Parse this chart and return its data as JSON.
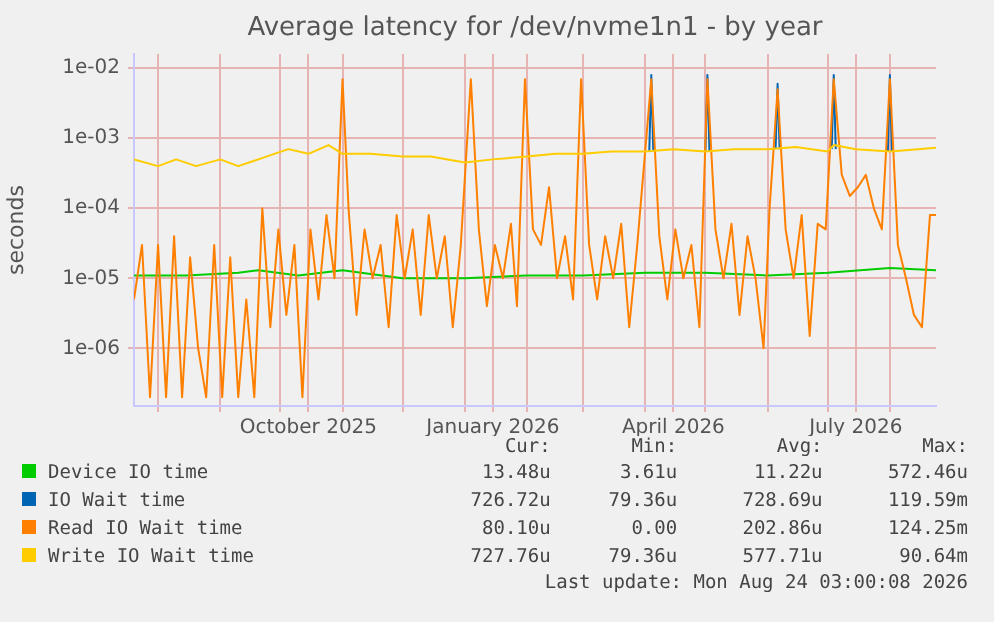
{
  "chart_data": {
    "type": "line",
    "title": "Average latency for /dev/nvme1n1 - by year",
    "ylabel": "seconds",
    "log": "y",
    "grid": true,
    "legend": "bottom",
    "marker": "none",
    "line_style": "solid",
    "xlim": [
      "2025-07-20",
      "2026-08-24"
    ],
    "xticks": [
      {
        "value": "2025-08-01",
        "label": null
      },
      {
        "value": "2025-09-01",
        "label": null
      },
      {
        "value": "2025-10-01",
        "label": null
      },
      {
        "value": "2025-10-15",
        "label": "October 2025"
      },
      {
        "value": "2025-11-01",
        "label": null
      },
      {
        "value": "2025-12-01",
        "label": null
      },
      {
        "value": "2026-01-01",
        "label": null
      },
      {
        "value": "2026-01-15",
        "label": "January 2026"
      },
      {
        "value": "2026-02-01",
        "label": null
      },
      {
        "value": "2026-03-01",
        "label": null
      },
      {
        "value": "2026-04-01",
        "label": null
      },
      {
        "value": "2026-04-15",
        "label": "April 2026"
      },
      {
        "value": "2026-05-01",
        "label": null
      },
      {
        "value": "2026-06-01",
        "label": null
      },
      {
        "value": "2026-07-01",
        "label": null
      },
      {
        "value": "2026-07-15",
        "label": "July 2026"
      },
      {
        "value": "2026-08-01",
        "label": null
      }
    ],
    "ylim": [
      1.5e-07,
      0.016
    ],
    "yticks": [
      {
        "value": 1e-06,
        "label": "1e-06"
      },
      {
        "value": 1e-05,
        "label": "1e-05"
      },
      {
        "value": 0.0001,
        "label": "1e-04"
      },
      {
        "value": 0.001,
        "label": "1e-03"
      },
      {
        "value": 0.01,
        "label": "1e-02"
      }
    ],
    "series": [
      {
        "name": "Device IO time",
        "color": "#00cc00",
        "x": [
          "2025-07-20",
          "2025-08-15",
          "2025-09-10",
          "2025-09-20",
          "2025-10-10",
          "2025-11-01",
          "2025-12-01",
          "2026-01-01",
          "2026-02-01",
          "2026-03-01",
          "2026-04-01",
          "2026-05-01",
          "2026-06-01",
          "2026-07-01",
          "2026-08-01",
          "2026-08-24"
        ],
        "values": [
          1.1e-05,
          1.1e-05,
          1.2e-05,
          1.3e-05,
          1.1e-05,
          1.3e-05,
          1e-05,
          1e-05,
          1.1e-05,
          1.1e-05,
          1.2e-05,
          1.2e-05,
          1.1e-05,
          1.2e-05,
          1.4e-05,
          1.3e-05
        ]
      },
      {
        "name": "IO Wait time",
        "color": "#0066b3",
        "x": [
          "2026-04-03",
          "2026-04-04",
          "2026-04-05",
          "2026-04-20",
          "2026-05-01",
          "2026-05-02",
          "2026-05-03",
          "2026-05-20",
          "2026-06-05",
          "2026-06-06",
          "2026-06-07",
          "2026-06-20",
          "2026-07-03",
          "2026-07-04",
          "2026-07-05",
          "2026-07-20",
          "2026-07-31",
          "2026-08-01",
          "2026-08-02"
        ],
        "values": [
          0.00065,
          0.008,
          0.00065,
          null,
          0.00065,
          0.008,
          0.00065,
          null,
          0.0007,
          0.006,
          0.0007,
          null,
          0.0007,
          0.008,
          0.0007,
          null,
          0.00065,
          0.008,
          0.00065
        ]
      },
      {
        "name": "Read IO Wait time",
        "color": "#ff8000",
        "x": [
          "2025-07-20",
          "2025-07-24",
          "2025-07-28",
          "2025-08-01",
          "2025-08-05",
          "2025-08-09",
          "2025-08-13",
          "2025-08-17",
          "2025-08-21",
          "2025-08-25",
          "2025-08-29",
          "2025-09-02",
          "2025-09-06",
          "2025-09-10",
          "2025-09-14",
          "2025-09-18",
          "2025-09-22",
          "2025-09-26",
          "2025-09-30",
          "2025-10-04",
          "2025-10-08",
          "2025-10-12",
          "2025-10-16",
          "2025-10-20",
          "2025-10-24",
          "2025-10-28",
          "2025-11-01",
          "2025-11-04",
          "2025-11-08",
          "2025-11-12",
          "2025-11-16",
          "2025-11-20",
          "2025-11-24",
          "2025-11-28",
          "2025-12-02",
          "2025-12-06",
          "2025-12-10",
          "2025-12-14",
          "2025-12-18",
          "2025-12-22",
          "2025-12-26",
          "2025-12-30",
          "2026-01-04",
          "2026-01-08",
          "2026-01-12",
          "2026-01-16",
          "2026-01-20",
          "2026-01-24",
          "2026-01-27",
          "2026-01-31",
          "2026-02-04",
          "2026-02-08",
          "2026-02-12",
          "2026-02-16",
          "2026-02-20",
          "2026-02-24",
          "2026-02-28",
          "2026-03-04",
          "2026-03-08",
          "2026-03-12",
          "2026-03-16",
          "2026-03-20",
          "2026-03-24",
          "2026-03-28",
          "2026-04-04",
          "2026-04-08",
          "2026-04-12",
          "2026-04-16",
          "2026-04-20",
          "2026-04-24",
          "2026-04-28",
          "2026-05-02",
          "2026-05-06",
          "2026-05-10",
          "2026-05-14",
          "2026-05-18",
          "2026-05-22",
          "2026-05-26",
          "2026-05-30",
          "2026-06-02",
          "2026-06-06",
          "2026-06-10",
          "2026-06-14",
          "2026-06-18",
          "2026-06-22",
          "2026-06-26",
          "2026-06-30",
          "2026-07-04",
          "2026-07-08",
          "2026-07-12",
          "2026-07-16",
          "2026-07-20",
          "2026-07-24",
          "2026-07-28",
          "2026-08-01",
          "2026-08-05",
          "2026-08-09",
          "2026-08-13",
          "2026-08-17",
          "2026-08-21",
          "2026-08-24"
        ],
        "values": [
          5e-06,
          3e-05,
          2e-07,
          3e-05,
          2e-07,
          4e-05,
          2e-07,
          2e-05,
          1e-06,
          2e-07,
          3e-05,
          2e-07,
          2e-05,
          2e-07,
          5e-06,
          2e-07,
          0.0001,
          2e-06,
          5e-05,
          3e-06,
          3e-05,
          2e-07,
          5e-05,
          5e-06,
          8e-05,
          1e-05,
          0.007,
          0.0001,
          3e-06,
          5e-05,
          1e-05,
          3e-05,
          2e-06,
          8e-05,
          1e-05,
          5e-05,
          3e-06,
          8e-05,
          1e-05,
          4e-05,
          2e-06,
          3e-05,
          0.007,
          5e-05,
          4e-06,
          3e-05,
          1e-05,
          6e-05,
          4e-06,
          0.007,
          5e-05,
          3e-05,
          0.0002,
          1e-05,
          4e-05,
          5e-06,
          0.007,
          3e-05,
          5e-06,
          4e-05,
          1e-05,
          6e-05,
          2e-06,
          3e-05,
          0.007,
          4e-05,
          5e-06,
          5e-05,
          1e-05,
          3e-05,
          2e-06,
          0.007,
          5e-05,
          1e-05,
          6e-05,
          3e-06,
          4e-05,
          1e-05,
          1e-06,
          0.0001,
          0.005,
          5e-05,
          1e-05,
          8e-05,
          1.5e-06,
          6e-05,
          5e-05,
          0.007,
          0.0003,
          0.00015,
          0.0002,
          0.0003,
          0.0001,
          5e-05,
          0.007,
          3e-05,
          1e-05,
          3e-06,
          2e-06,
          8e-05,
          8e-05
        ]
      },
      {
        "name": "Write IO Wait time",
        "color": "#ffcc00",
        "x": [
          "2025-07-20",
          "2025-08-01",
          "2025-08-10",
          "2025-08-20",
          "2025-09-01",
          "2025-09-10",
          "2025-09-20",
          "2025-09-28",
          "2025-10-05",
          "2025-10-15",
          "2025-10-25",
          "2025-11-01",
          "2025-11-15",
          "2025-12-01",
          "2025-12-15",
          "2026-01-01",
          "2026-01-15",
          "2026-02-01",
          "2026-02-15",
          "2026-03-01",
          "2026-03-15",
          "2026-04-01",
          "2026-04-15",
          "2026-05-01",
          "2026-05-15",
          "2026-06-01",
          "2026-06-15",
          "2026-07-01",
          "2026-07-04",
          "2026-07-15",
          "2026-08-01",
          "2026-08-15",
          "2026-08-24"
        ],
        "values": [
          0.0005,
          0.0004,
          0.0005,
          0.0004,
          0.0005,
          0.0004,
          0.0005,
          0.0006,
          0.0007,
          0.0006,
          0.0008,
          0.0006,
          0.0006,
          0.00055,
          0.00055,
          0.00045,
          0.0005,
          0.00055,
          0.0006,
          0.0006,
          0.00065,
          0.00065,
          0.0007,
          0.00065,
          0.0007,
          0.0007,
          0.00075,
          0.00065,
          0.0008,
          0.0007,
          0.00065,
          0.0007,
          0.00073
        ]
      }
    ],
    "annotations": [
      "Cur:",
      "Min:",
      "Avg:",
      "Max:",
      "13.48u",
      "3.61u",
      "11.22u",
      "572.46u",
      "726.72u",
      "79.36u",
      "728.69u",
      "119.59m",
      "80.10u",
      "0.00",
      "202.86u",
      "124.25m",
      "727.76u",
      "79.36u",
      "577.71u",
      "90.64m",
      "Last update: Mon Aug 24 03:00:08 2026"
    ]
  }
}
